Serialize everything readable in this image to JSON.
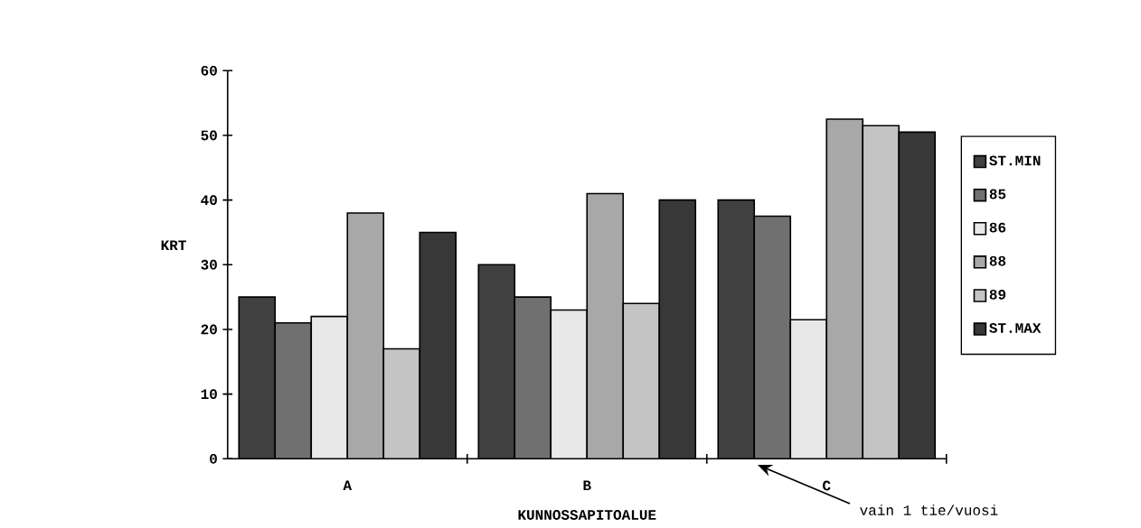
{
  "chart_data": {
    "type": "bar",
    "xlabel": "KUNNOSSAPITOALUE",
    "ylabel": "KRT",
    "categories": [
      "A",
      "B",
      "C"
    ],
    "series": [
      {
        "name": "ST.MIN",
        "color": "#404040",
        "values": [
          25,
          30,
          40
        ]
      },
      {
        "name": "85",
        "color": "#707070",
        "values": [
          21,
          25,
          37.5
        ]
      },
      {
        "name": "86",
        "color": "#e8e8e8",
        "values": [
          22,
          23,
          21.5
        ]
      },
      {
        "name": "88",
        "color": "#a8a8a8",
        "values": [
          38,
          41,
          52.5
        ]
      },
      {
        "name": "89",
        "color": "#c4c4c4",
        "values": [
          17,
          24,
          51.5
        ]
      },
      {
        "name": "ST.MAX",
        "color": "#383838",
        "values": [
          35,
          40,
          50.5
        ]
      }
    ],
    "ylim": [
      0,
      60
    ],
    "yticks": [
      0,
      10,
      20,
      30,
      40,
      50,
      60
    ],
    "legend": "right",
    "annotations": [
      "vain 1 tie/vuosi"
    ]
  }
}
